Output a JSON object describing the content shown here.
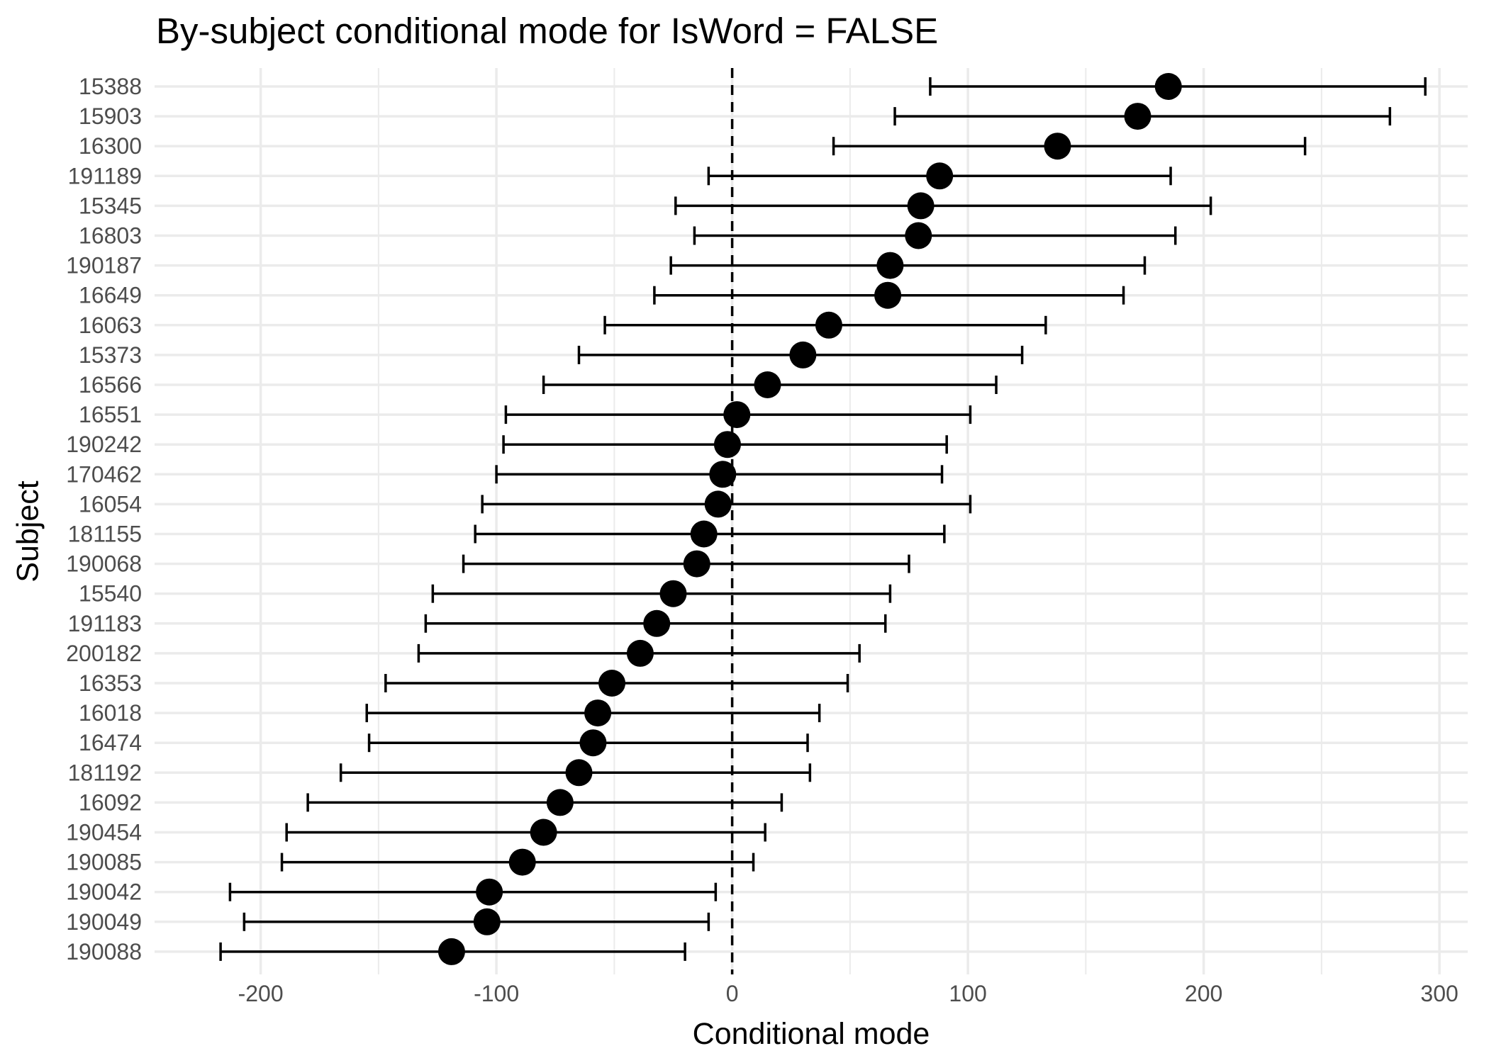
{
  "chart_data": {
    "type": "scatter",
    "subtype": "dot-and-whisker",
    "title": "By-subject conditional mode for IsWord = FALSE",
    "xlabel": "Conditional mode",
    "ylabel": "Subject",
    "xlim": [
      -245,
      312
    ],
    "x_ticks": [
      -200,
      -100,
      0,
      100,
      200,
      300
    ],
    "x_tick_labels": [
      "-200",
      "-100",
      "0",
      "100",
      "200",
      "300"
    ],
    "x_minor_ticks": [
      -150,
      -50,
      50,
      150,
      250
    ],
    "reference_line": {
      "x": 0,
      "style": "dashed"
    },
    "grid": true,
    "legend": "none",
    "colors": {
      "points": "#000000",
      "grid": "#ebebeb",
      "text": "#4d4d4d",
      "title": "#000000"
    },
    "subjects": [
      {
        "id": "15388",
        "mode": 185,
        "lower": 84,
        "upper": 294
      },
      {
        "id": "15903",
        "mode": 172,
        "lower": 69,
        "upper": 279
      },
      {
        "id": "16300",
        "mode": 138,
        "lower": 43,
        "upper": 243
      },
      {
        "id": "191189",
        "mode": 88,
        "lower": -10,
        "upper": 186
      },
      {
        "id": "15345",
        "mode": 80,
        "lower": -24,
        "upper": 203
      },
      {
        "id": "16803",
        "mode": 79,
        "lower": -16,
        "upper": 188
      },
      {
        "id": "190187",
        "mode": 67,
        "lower": -26,
        "upper": 175
      },
      {
        "id": "16649",
        "mode": 66,
        "lower": -33,
        "upper": 166
      },
      {
        "id": "16063",
        "mode": 41,
        "lower": -54,
        "upper": 133
      },
      {
        "id": "15373",
        "mode": 30,
        "lower": -65,
        "upper": 123
      },
      {
        "id": "16566",
        "mode": 15,
        "lower": -80,
        "upper": 112
      },
      {
        "id": "16551",
        "mode": 2,
        "lower": -96,
        "upper": 101
      },
      {
        "id": "190242",
        "mode": -2,
        "lower": -97,
        "upper": 91
      },
      {
        "id": "170462",
        "mode": -4,
        "lower": -100,
        "upper": 89
      },
      {
        "id": "16054",
        "mode": -6,
        "lower": -106,
        "upper": 101
      },
      {
        "id": "181155",
        "mode": -12,
        "lower": -109,
        "upper": 90
      },
      {
        "id": "190068",
        "mode": -15,
        "lower": -114,
        "upper": 75
      },
      {
        "id": "15540",
        "mode": -25,
        "lower": -127,
        "upper": 67
      },
      {
        "id": "191183",
        "mode": -32,
        "lower": -130,
        "upper": 65
      },
      {
        "id": "200182",
        "mode": -39,
        "lower": -133,
        "upper": 54
      },
      {
        "id": "16353",
        "mode": -51,
        "lower": -147,
        "upper": 49
      },
      {
        "id": "16018",
        "mode": -57,
        "lower": -155,
        "upper": 37
      },
      {
        "id": "16474",
        "mode": -59,
        "lower": -154,
        "upper": 32
      },
      {
        "id": "181192",
        "mode": -65,
        "lower": -166,
        "upper": 33
      },
      {
        "id": "16092",
        "mode": -73,
        "lower": -180,
        "upper": 21
      },
      {
        "id": "190454",
        "mode": -80,
        "lower": -189,
        "upper": 14
      },
      {
        "id": "190085",
        "mode": -89,
        "lower": -191,
        "upper": 9
      },
      {
        "id": "190042",
        "mode": -103,
        "lower": -213,
        "upper": -7
      },
      {
        "id": "190049",
        "mode": -104,
        "lower": -207,
        "upper": -10
      },
      {
        "id": "190088",
        "mode": -119,
        "lower": -217,
        "upper": -20
      }
    ]
  }
}
